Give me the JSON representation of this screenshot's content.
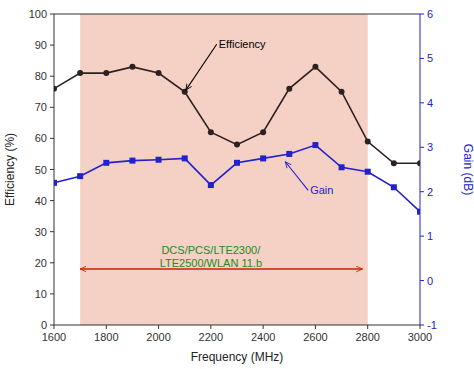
{
  "chart_data": {
    "type": "line",
    "x_label": "Frequency (MHz)",
    "y_label": "Efficiency (%)",
    "y2_label": "Gain (dB)",
    "x": [
      1600,
      1700,
      1800,
      1900,
      2000,
      2100,
      2200,
      2300,
      2400,
      2500,
      2600,
      2700,
      2800,
      2900,
      3000
    ],
    "series": [
      {
        "color": "#2d2020",
        "marker": "circle",
        "line_style": "solid",
        "values": [
          76,
          81,
          81,
          83,
          81,
          75,
          62,
          58,
          62,
          76,
          83,
          75,
          59,
          52,
          52
        ]
      },
      {
        "color": "#2222cc",
        "marker": "square",
        "line_style": "solid",
        "axis": "y2",
        "values": [
          2.2,
          2.35,
          2.65,
          2.7,
          2.72,
          2.75,
          2.15,
          2.65,
          2.75,
          2.85,
          3.05,
          2.55,
          2.45,
          2.1,
          1.55
        ]
      }
    ],
    "xlim": [
      1600,
      3000
    ],
    "xticks": [
      1600,
      1800,
      2000,
      2200,
      2400,
      2600,
      2800,
      3000
    ],
    "ylim": [
      0,
      100
    ],
    "yticks": [
      0,
      10,
      20,
      30,
      40,
      50,
      60,
      70,
      80,
      90,
      100
    ],
    "y2lim": [
      -1,
      6
    ],
    "y2ticks": [
      -1,
      0,
      1,
      2,
      3,
      4,
      5,
      6
    ],
    "grid": false,
    "band": {
      "start": 1700,
      "end": 2800,
      "color": "#f5d0c5"
    },
    "range_arrow": {
      "x1": 1700,
      "x2": 2780,
      "y": 18,
      "color": "#cc2200"
    },
    "annotations": [
      {
        "text": "Efficiency",
        "x": 2100,
        "y": 75,
        "text_x": 2230,
        "text_y": 89,
        "color": "#000000"
      },
      {
        "text": "Gain",
        "x": 2480,
        "y": 53,
        "text_x": 2580,
        "text_y": 42,
        "color": "#2222cc"
      },
      {
        "text": "DCS/PCS/LTE2300/\nLTE2500/WLAN 11.b",
        "x": 2200,
        "y": 22,
        "color": "#228B22"
      }
    ]
  }
}
